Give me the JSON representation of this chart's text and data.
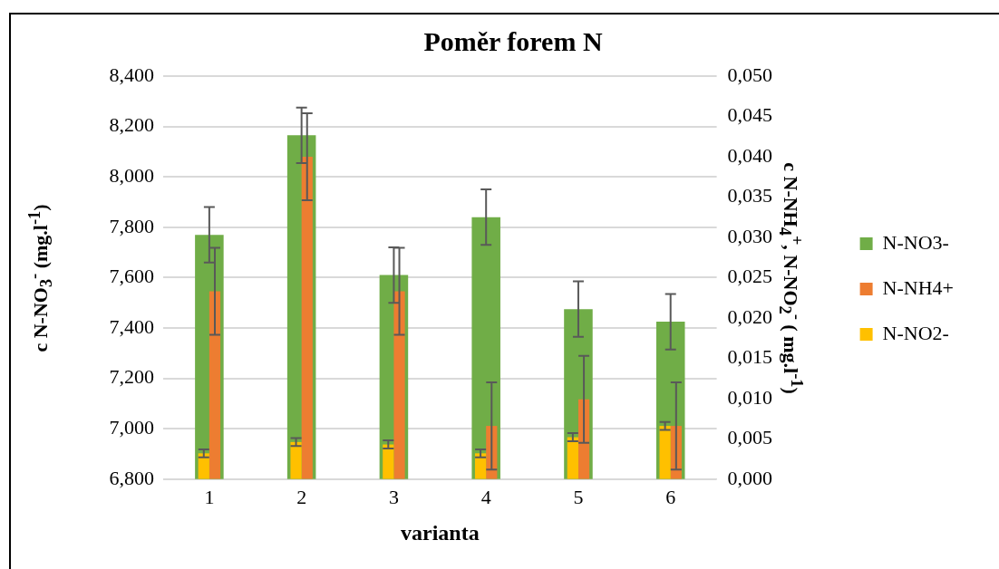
{
  "chart_data": {
    "type": "bar",
    "title": "Poměr forem N",
    "xlabel": "varianta",
    "ylabel": "c N-NO$_{3}$$^{-}$ (mg.l$^{-1}$)",
    "y2label": "c N-NH$_{4}$$^{+}$, N-NO$_{2}$$^{-}$ ( mg.l$^{-1}$)",
    "categories": [
      "1",
      "2",
      "3",
      "4",
      "5",
      "6"
    ],
    "series": [
      {
        "name": "N-NO3-",
        "color": "#70ad47",
        "values": [
          7.77,
          8.165,
          7.61,
          7.84,
          7.475,
          7.425
        ],
        "errors": [
          0.11,
          0.11,
          0.11,
          0.11,
          0.11,
          0.11
        ]
      },
      {
        "name": "N-NH4+",
        "color": "#ed7d31",
        "axis": "y2",
        "values": [
          0.0233,
          0.04,
          0.0233,
          0.0066,
          0.0099,
          0.0066
        ],
        "errors": [
          0.0054,
          0.0054,
          0.0054,
          0.0054,
          0.0054,
          0.0054
        ]
      },
      {
        "name": "N-NO2-",
        "color": "#ffc000",
        "axis": "y2",
        "values": [
          0.0032,
          0.0046,
          0.0043,
          0.0032,
          0.0052,
          0.0066
        ],
        "errors": [
          0.0005,
          0.0005,
          0.0005,
          0.0005,
          0.0005,
          0.0005
        ]
      }
    ],
    "ylim": [
      6.8,
      8.4
    ],
    "yticks": [
      {
        "value": 6.8,
        "label": "6,800"
      },
      {
        "value": 7.0,
        "label": "7,000"
      },
      {
        "value": 7.2,
        "label": "7,200"
      },
      {
        "value": 7.4,
        "label": "7,400"
      },
      {
        "value": 7.6,
        "label": "7,600"
      },
      {
        "value": 7.8,
        "label": "7,800"
      },
      {
        "value": 8.0,
        "label": "8,000"
      },
      {
        "value": 8.2,
        "label": "8,200"
      },
      {
        "value": 8.4,
        "label": "8,400"
      }
    ],
    "y2lim": [
      0,
      0.05
    ],
    "y2ticks": [
      {
        "value": 0,
        "label": "0,000"
      },
      {
        "value": 0.005,
        "label": "0,005"
      },
      {
        "value": 0.01,
        "label": "0,010"
      },
      {
        "value": 0.015,
        "label": "0,015"
      },
      {
        "value": 0.02,
        "label": "0,020"
      },
      {
        "value": 0.025,
        "label": "0,025"
      },
      {
        "value": 0.03,
        "label": "0,030"
      },
      {
        "value": 0.035,
        "label": "0,035"
      },
      {
        "value": 0.04,
        "label": "0,040"
      },
      {
        "value": 0.045,
        "label": "0,045"
      },
      {
        "value": 0.05,
        "label": "0,050"
      }
    ],
    "grid": "y",
    "legend": "right"
  }
}
